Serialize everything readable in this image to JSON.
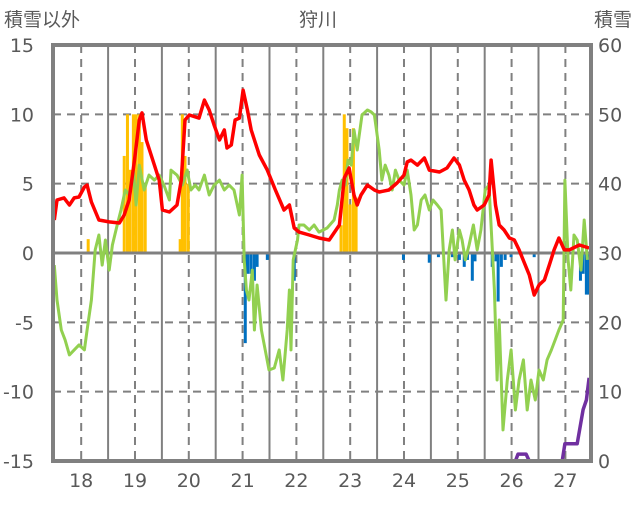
{
  "chart_data": {
    "type": "line",
    "title": "狩川",
    "ylabel_left": "積雪以外",
    "ylabel_right": "積雪",
    "xlim": [
      17.476,
      27.476
    ],
    "ylim_left": [
      -15,
      15
    ],
    "ylim_right": [
      0,
      60
    ],
    "x_ticks": [
      18,
      19,
      20,
      21,
      22,
      23,
      24,
      25,
      26,
      27
    ],
    "x_tick_labels": [
      "18",
      "19",
      "20",
      "21",
      "22",
      "23",
      "24",
      "25",
      "26",
      "27"
    ],
    "y_ticks_left": [
      15,
      10,
      5,
      0,
      -5,
      -10,
      -15
    ],
    "y_tick_labels_left": [
      "15",
      "10",
      "5",
      "0",
      "-5",
      "-10",
      "-15"
    ],
    "y_ticks_right": [
      60,
      50,
      40,
      30,
      20,
      10,
      0
    ],
    "y_tick_labels_right": [
      "60",
      "50",
      "40",
      "30",
      "20",
      "10",
      "0"
    ],
    "grid": true,
    "colors": {
      "red": "#ff0000",
      "green": "#92d050",
      "orange": "#ffc000",
      "blue": "#0070c0",
      "purple": "#7030a0",
      "axis": "#808080"
    },
    "series": [
      {
        "name": "red",
        "axis": "left",
        "kind": "line",
        "points": [
          [
            17.5,
            2.38
          ],
          [
            17.55,
            3.82
          ],
          [
            17.68,
            3.97
          ],
          [
            17.78,
            3.46
          ],
          [
            17.87,
            3.97
          ],
          [
            17.96,
            4.04
          ],
          [
            18.06,
            4.76
          ],
          [
            18.11,
            4.9
          ],
          [
            18.19,
            3.68
          ],
          [
            18.33,
            2.38
          ],
          [
            18.52,
            2.24
          ],
          [
            18.71,
            2.16
          ],
          [
            18.8,
            2.74
          ],
          [
            18.89,
            3.82
          ],
          [
            18.99,
            6.7
          ],
          [
            19.08,
            9.59
          ],
          [
            19.13,
            10.1
          ],
          [
            19.21,
            8.15
          ],
          [
            19.36,
            6.34
          ],
          [
            19.45,
            5.26
          ],
          [
            19.51,
            3.1
          ],
          [
            19.64,
            2.96
          ],
          [
            19.78,
            3.46
          ],
          [
            19.86,
            5.26
          ],
          [
            19.93,
            9.59
          ],
          [
            20.01,
            9.95
          ],
          [
            20.19,
            9.73
          ],
          [
            20.29,
            11.03
          ],
          [
            20.38,
            10.31
          ],
          [
            20.47,
            9.23
          ],
          [
            20.57,
            8.15
          ],
          [
            20.66,
            8.87
          ],
          [
            20.71,
            7.57
          ],
          [
            20.79,
            7.79
          ],
          [
            20.86,
            9.59
          ],
          [
            20.94,
            9.73
          ],
          [
            21.01,
            11.75
          ],
          [
            21.09,
            10.31
          ],
          [
            21.16,
            8.87
          ],
          [
            21.31,
            7.07
          ],
          [
            21.46,
            5.98
          ],
          [
            21.61,
            4.54
          ],
          [
            21.77,
            3.1
          ],
          [
            21.87,
            3.46
          ],
          [
            21.96,
            1.8
          ],
          [
            22.05,
            1.51
          ],
          [
            22.24,
            1.3
          ],
          [
            22.42,
            1.08
          ],
          [
            22.61,
            0.94
          ],
          [
            22.8,
            2.02
          ],
          [
            22.89,
            5.41
          ],
          [
            22.98,
            6.13
          ],
          [
            23.07,
            4.18
          ],
          [
            23.13,
            3.46
          ],
          [
            23.2,
            4.18
          ],
          [
            23.32,
            4.9
          ],
          [
            23.45,
            4.54
          ],
          [
            23.54,
            4.4
          ],
          [
            23.72,
            4.54
          ],
          [
            23.87,
            5.05
          ],
          [
            24.0,
            5.62
          ],
          [
            24.06,
            6.56
          ],
          [
            24.13,
            6.7
          ],
          [
            24.25,
            6.34
          ],
          [
            24.38,
            6.85
          ],
          [
            24.47,
            5.98
          ],
          [
            24.66,
            5.84
          ],
          [
            24.8,
            6.13
          ],
          [
            24.93,
            6.85
          ],
          [
            25.03,
            6.34
          ],
          [
            25.12,
            5.26
          ],
          [
            25.21,
            4.54
          ],
          [
            25.3,
            3.46
          ],
          [
            25.36,
            3.1
          ],
          [
            25.49,
            3.46
          ],
          [
            25.58,
            4.18
          ],
          [
            25.62,
            6.7
          ],
          [
            25.7,
            3.46
          ],
          [
            25.77,
            2.02
          ],
          [
            25.86,
            1.66
          ],
          [
            25.96,
            1.08
          ],
          [
            26.05,
            0.94
          ],
          [
            26.14,
            0.22
          ],
          [
            26.23,
            -0.65
          ],
          [
            26.33,
            -1.59
          ],
          [
            26.42,
            -3.03
          ],
          [
            26.51,
            -2.31
          ],
          [
            26.61,
            -1.95
          ],
          [
            26.7,
            -0.87
          ],
          [
            26.79,
            0.22
          ],
          [
            26.88,
            1.08
          ],
          [
            26.98,
            0.22
          ],
          [
            27.07,
            0.22
          ],
          [
            27.26,
            0.58
          ],
          [
            27.44,
            0.36
          ]
        ]
      },
      {
        "name": "green",
        "axis": "left",
        "kind": "line",
        "points": [
          [
            17.5,
            -0.87
          ],
          [
            17.55,
            -3.39
          ],
          [
            17.63,
            -5.55
          ],
          [
            17.7,
            -6.27
          ],
          [
            17.78,
            -7.35
          ],
          [
            17.87,
            -6.99
          ],
          [
            17.96,
            -6.63
          ],
          [
            18.06,
            -6.99
          ],
          [
            18.11,
            -5.55
          ],
          [
            18.19,
            -3.39
          ],
          [
            18.26,
            0.22
          ],
          [
            18.33,
            1.3
          ],
          [
            18.39,
            -0.87
          ],
          [
            18.45,
            0.94
          ],
          [
            18.52,
            -1.23
          ],
          [
            18.58,
            0.58
          ],
          [
            18.67,
            2.02
          ],
          [
            18.74,
            3.1
          ],
          [
            18.82,
            4.54
          ],
          [
            18.89,
            4.18
          ],
          [
            18.97,
            5.98
          ],
          [
            19.02,
            3.46
          ],
          [
            19.08,
            6.34
          ],
          [
            19.17,
            4.54
          ],
          [
            19.26,
            5.62
          ],
          [
            19.36,
            5.26
          ],
          [
            19.45,
            5.62
          ],
          [
            19.54,
            4.9
          ],
          [
            19.64,
            3.82
          ],
          [
            19.67,
            5.98
          ],
          [
            19.78,
            5.62
          ],
          [
            19.88,
            4.9
          ],
          [
            19.97,
            5.98
          ],
          [
            20.04,
            4.54
          ],
          [
            20.12,
            4.9
          ],
          [
            20.19,
            4.54
          ],
          [
            20.29,
            5.62
          ],
          [
            20.38,
            4.18
          ],
          [
            20.47,
            4.9
          ],
          [
            20.57,
            5.26
          ],
          [
            20.66,
            4.54
          ],
          [
            20.75,
            4.9
          ],
          [
            20.84,
            4.54
          ],
          [
            20.94,
            2.74
          ],
          [
            20.99,
            5.62
          ],
          [
            21.03,
            -0.5
          ],
          [
            21.07,
            -2.67
          ],
          [
            21.12,
            -3.39
          ],
          [
            21.18,
            -1.23
          ],
          [
            21.22,
            -5.55
          ],
          [
            21.27,
            -2.31
          ],
          [
            21.35,
            -5.55
          ],
          [
            21.42,
            -6.99
          ],
          [
            21.49,
            -8.44
          ],
          [
            21.59,
            -8.29
          ],
          [
            21.68,
            -6.99
          ],
          [
            21.75,
            -9.16
          ],
          [
            21.83,
            -5.55
          ],
          [
            21.87,
            -2.67
          ],
          [
            21.9,
            -6.99
          ],
          [
            21.94,
            -0.5
          ],
          [
            22.02,
            0.94
          ],
          [
            22.05,
            2.02
          ],
          [
            22.14,
            2.02
          ],
          [
            22.24,
            1.66
          ],
          [
            22.33,
            2.02
          ],
          [
            22.42,
            1.51
          ],
          [
            22.57,
            1.8
          ],
          [
            22.7,
            2.38
          ],
          [
            22.76,
            3.46
          ],
          [
            22.8,
            4.54
          ],
          [
            22.85,
            5.26
          ],
          [
            22.91,
            4.9
          ],
          [
            22.96,
            6.7
          ],
          [
            23.02,
            6.34
          ],
          [
            23.07,
            8.87
          ],
          [
            23.13,
            7.43
          ],
          [
            23.22,
            9.95
          ],
          [
            23.32,
            10.31
          ],
          [
            23.39,
            10.17
          ],
          [
            23.45,
            9.95
          ],
          [
            23.54,
            7.43
          ],
          [
            23.59,
            5.26
          ],
          [
            23.65,
            6.34
          ],
          [
            23.72,
            5.62
          ],
          [
            23.78,
            4.54
          ],
          [
            23.84,
            5.98
          ],
          [
            23.91,
            5.26
          ],
          [
            24.0,
            4.9
          ],
          [
            24.06,
            5.98
          ],
          [
            24.13,
            4.18
          ],
          [
            24.19,
            1.66
          ],
          [
            24.25,
            2.02
          ],
          [
            24.32,
            3.82
          ],
          [
            24.39,
            4.18
          ],
          [
            24.47,
            3.1
          ],
          [
            24.54,
            3.82
          ],
          [
            24.62,
            3.46
          ],
          [
            24.69,
            3.1
          ],
          [
            24.78,
            -3.39
          ],
          [
            24.84,
            0.22
          ],
          [
            24.9,
            1.66
          ],
          [
            24.95,
            -0.5
          ],
          [
            25.03,
            1.66
          ],
          [
            25.08,
            0.94
          ],
          [
            25.14,
            -0.5
          ],
          [
            25.21,
            0.58
          ],
          [
            25.29,
            2.02
          ],
          [
            25.36,
            0.22
          ],
          [
            25.43,
            1.66
          ],
          [
            25.51,
            4.54
          ],
          [
            25.58,
            4.9
          ],
          [
            25.68,
            -2.67
          ],
          [
            25.73,
            -9.16
          ],
          [
            25.77,
            -4.83
          ],
          [
            25.84,
            -12.76
          ],
          [
            25.92,
            -9.16
          ],
          [
            25.99,
            -6.99
          ],
          [
            26.07,
            -11.32
          ],
          [
            26.14,
            -9.16
          ],
          [
            26.22,
            -7.71
          ],
          [
            26.29,
            -11.32
          ],
          [
            26.36,
            -9.16
          ],
          [
            26.44,
            -10.6
          ],
          [
            26.51,
            -8.44
          ],
          [
            26.59,
            -9.16
          ],
          [
            26.66,
            -7.71
          ],
          [
            26.74,
            -6.99
          ],
          [
            26.81,
            -6.27
          ],
          [
            26.88,
            -5.55
          ],
          [
            26.96,
            -4.83
          ],
          [
            26.99,
            5.26
          ],
          [
            27.05,
            -0.5
          ],
          [
            27.1,
            -2.67
          ],
          [
            27.16,
            1.3
          ],
          [
            27.22,
            0.94
          ],
          [
            27.29,
            -1.23
          ],
          [
            27.35,
            2.38
          ],
          [
            27.41,
            -0.5
          ]
        ]
      },
      {
        "name": "orange",
        "axis": "left",
        "kind": "bar",
        "points": [
          [
            18.13,
            1.0
          ],
          [
            18.8,
            7.0
          ],
          [
            18.86,
            10.0
          ],
          [
            18.91,
            6.0
          ],
          [
            18.97,
            10.0
          ],
          [
            19.02,
            10.0
          ],
          [
            19.08,
            10.0
          ],
          [
            19.13,
            8.0
          ],
          [
            19.19,
            5.0
          ],
          [
            19.84,
            1.0
          ],
          [
            19.88,
            10.0
          ],
          [
            19.93,
            7.0
          ],
          [
            19.99,
            5.0
          ],
          [
            22.83,
            2.0
          ],
          [
            22.89,
            10.0
          ],
          [
            22.94,
            9.0
          ],
          [
            23.0,
            3.5
          ],
          [
            23.06,
            9.0
          ],
          [
            23.11,
            4.0
          ]
        ]
      },
      {
        "name": "blue",
        "axis": "left",
        "kind": "bar",
        "points": [
          [
            21.05,
            -6.5
          ],
          [
            21.1,
            -1.5
          ],
          [
            21.16,
            -1.5
          ],
          [
            21.22,
            -2.0
          ],
          [
            21.27,
            -1.0
          ],
          [
            21.46,
            -0.5
          ],
          [
            21.96,
            -2.0
          ],
          [
            23.99,
            -0.5
          ],
          [
            24.47,
            -0.7
          ],
          [
            24.64,
            -0.3
          ],
          [
            24.9,
            -0.3
          ],
          [
            25.03,
            -0.5
          ],
          [
            25.12,
            -1.0
          ],
          [
            25.18,
            -0.5
          ],
          [
            25.27,
            -2.0
          ],
          [
            25.32,
            -0.6
          ],
          [
            25.64,
            -1.0
          ],
          [
            25.71,
            -0.6
          ],
          [
            25.75,
            -3.5
          ],
          [
            25.81,
            -1.0
          ],
          [
            25.88,
            -0.5
          ],
          [
            25.99,
            -0.3
          ],
          [
            26.42,
            -0.3
          ],
          [
            27.28,
            -2.0
          ],
          [
            27.33,
            -1.5
          ],
          [
            27.39,
            -3.0
          ],
          [
            27.44,
            -3.0
          ]
        ]
      },
      {
        "name": "purple",
        "axis": "right",
        "kind": "line",
        "points": [
          [
            17.476,
            0
          ],
          [
            26.07,
            0
          ],
          [
            26.12,
            1
          ],
          [
            26.27,
            1
          ],
          [
            26.33,
            0
          ],
          [
            26.94,
            0
          ],
          [
            26.99,
            2.5
          ],
          [
            27.22,
            2.5
          ],
          [
            27.33,
            7.4
          ],
          [
            27.39,
            8.8
          ],
          [
            27.44,
            12
          ]
        ]
      }
    ]
  }
}
